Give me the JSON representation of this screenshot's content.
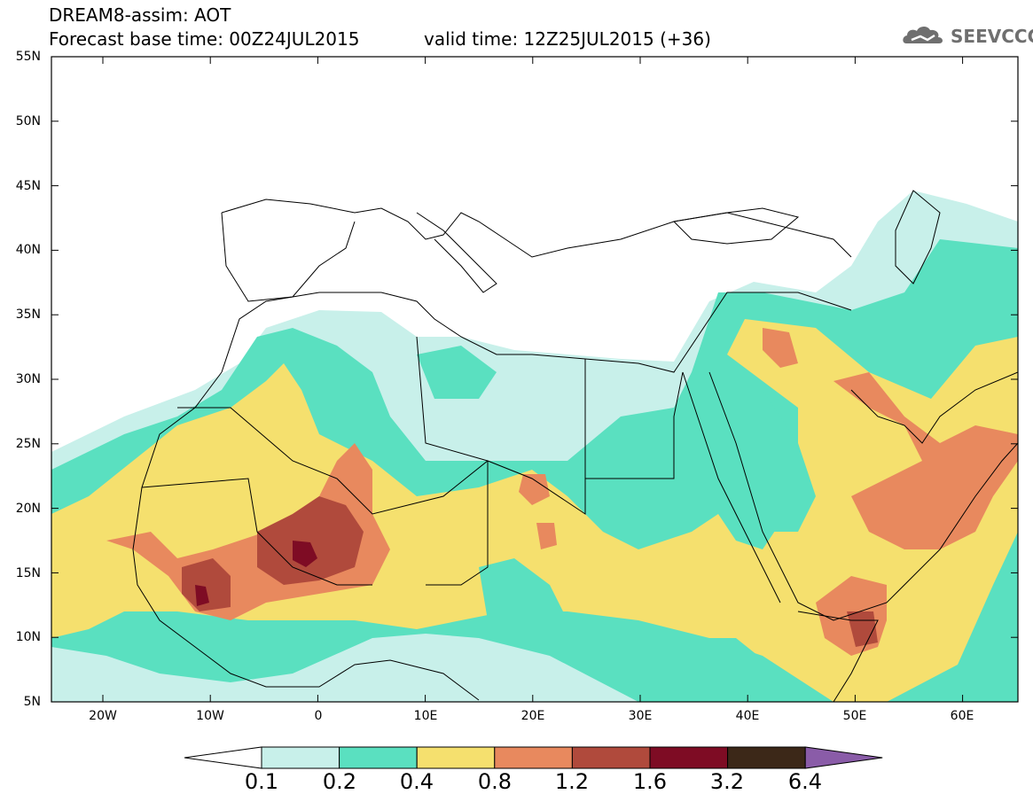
{
  "header": {
    "title_line1": "DREAM8-assim: AOT",
    "title_line2": "Forecast base time: 00Z24JUL2015",
    "valid_time": "valid time: 12Z25JUL2015 (+36)",
    "logo_text": "SEEVCCC"
  },
  "axes": {
    "lat_labels": [
      "55N",
      "50N",
      "45N",
      "40N",
      "35N",
      "30N",
      "25N",
      "20N",
      "15N",
      "10N",
      "5N"
    ],
    "lon_labels": [
      "20W",
      "10W",
      "0",
      "10E",
      "20E",
      "30E",
      "40E",
      "50E",
      "60E"
    ]
  },
  "legend": {
    "labels": [
      "0.1",
      "0.2",
      "0.4",
      "0.8",
      "1.2",
      "1.6",
      "3.2",
      "6.4"
    ],
    "colors": [
      "#ffffff",
      "#c8f0ea",
      "#5ae0c0",
      "#f5e06e",
      "#e8895e",
      "#b04a3c",
      "#7e0c24",
      "#3c2818",
      "#8a5ca8"
    ]
  },
  "colors": {
    "level1": "#c8f0ea",
    "level2": "#5ae0c0",
    "level3": "#f5e06e",
    "level4": "#e8895e",
    "level5": "#b04a3c",
    "level6": "#7e0c24"
  }
}
